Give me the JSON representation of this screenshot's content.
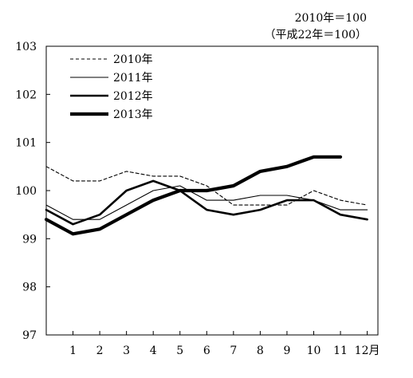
{
  "notes": {
    "base": "2010年＝100",
    "base_heisei": "（平成22年＝100）"
  },
  "chart_data": {
    "type": "line",
    "title": "",
    "xlabel": "",
    "ylabel": "",
    "categories": [
      "1",
      "2",
      "3",
      "4",
      "5",
      "6",
      "7",
      "8",
      "9",
      "10",
      "11",
      "12"
    ],
    "x_tick_labels": [
      "1",
      "2",
      "3",
      "4",
      "5",
      "6",
      "7",
      "8",
      "9",
      "10",
      "11",
      "12月"
    ],
    "ylim": [
      97,
      103
    ],
    "y_ticks": [
      97,
      98,
      99,
      100,
      101,
      102,
      103
    ],
    "grid": false,
    "legend_position": "top-left",
    "series": [
      {
        "name": "2010年",
        "style": "dashed",
        "weight": "thin",
        "start": 100.5,
        "values": [
          100.2,
          100.2,
          100.4,
          100.3,
          100.3,
          100.1,
          99.7,
          99.7,
          99.7,
          100.0,
          99.8,
          99.7
        ]
      },
      {
        "name": "2011年",
        "style": "solid",
        "weight": "thin",
        "start": 99.7,
        "values": [
          99.4,
          99.4,
          99.7,
          100.0,
          100.1,
          99.8,
          99.8,
          99.9,
          99.9,
          99.8,
          99.6,
          99.6
        ]
      },
      {
        "name": "2012年",
        "style": "solid",
        "weight": "medium",
        "start": 99.6,
        "values": [
          99.3,
          99.5,
          100.0,
          100.2,
          100.0,
          99.6,
          99.5,
          99.6,
          99.8,
          99.8,
          99.5,
          99.4
        ]
      },
      {
        "name": "2013年",
        "style": "solid",
        "weight": "bold",
        "start": 99.4,
        "values": [
          99.1,
          99.2,
          99.5,
          99.8,
          100.0,
          100.0,
          100.1,
          100.4,
          100.5,
          100.7,
          100.7,
          null
        ]
      }
    ]
  }
}
